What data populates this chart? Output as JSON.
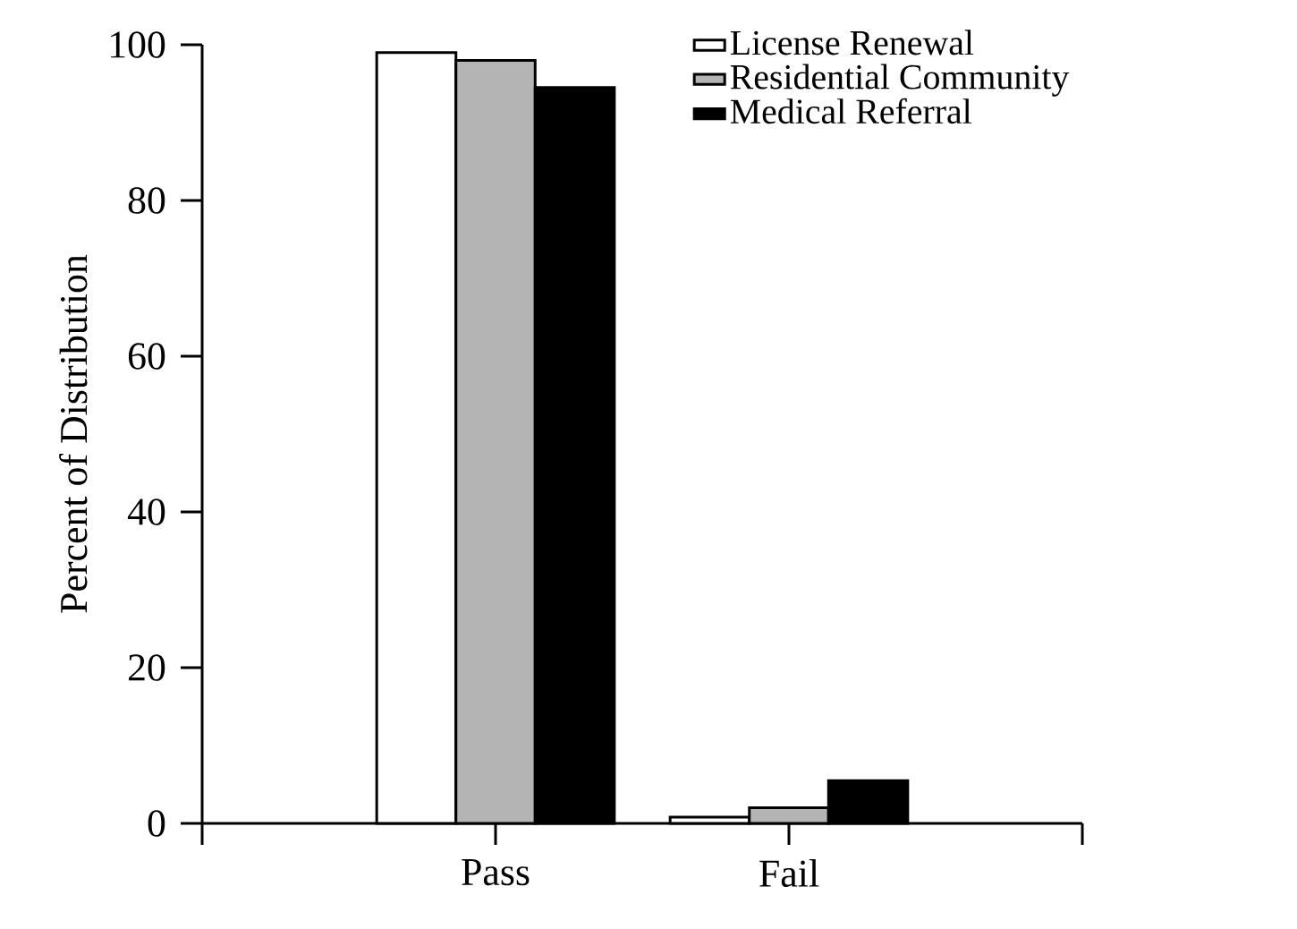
{
  "chart_data": {
    "type": "bar",
    "ylabel": "Percent of Distribution",
    "categories": [
      "Pass",
      "Fail"
    ],
    "series": [
      {
        "name": "License Renewal",
        "color": "#ffffff",
        "values": [
          99,
          0.8
        ]
      },
      {
        "name": "Residential Community",
        "color": "#b4b4b4",
        "values": [
          98,
          2
        ]
      },
      {
        "name": "Medical Referral",
        "color": "#000000",
        "values": [
          94.5,
          5.5
        ]
      }
    ],
    "ylim": [
      0,
      100
    ],
    "yticks": [
      0,
      20,
      40,
      60,
      80,
      100
    ],
    "legend": "top right",
    "grid": false
  }
}
